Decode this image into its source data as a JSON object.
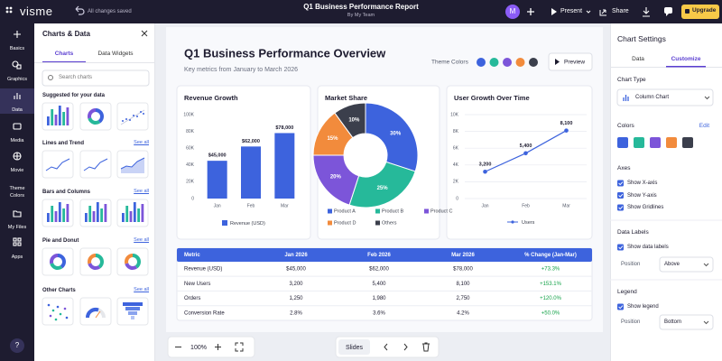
{
  "topbar": {
    "logo": "visme",
    "status": "All changes saved",
    "title": "Q1 Business Performance Report",
    "subtitle": "By My Team",
    "avatar": "M",
    "present": "Present",
    "share": "Share",
    "upgrade": "Upgrade"
  },
  "rail": {
    "items": [
      "Basics",
      "Graphics",
      "Data",
      "Media",
      "Movie",
      "Theme Colors",
      "My Files",
      "Apps"
    ],
    "help": "?"
  },
  "panel": {
    "title": "Charts & Data",
    "tabs": [
      "Charts",
      "Data Widgets"
    ],
    "search": "Search charts",
    "sections": [
      {
        "title": "Suggested for your data"
      },
      {
        "title": "Lines and Trend",
        "link": "See all"
      },
      {
        "title": "Bars and Columns",
        "link": "See all"
      },
      {
        "title": "Pie and Donut",
        "link": "See all"
      },
      {
        "title": "Other Charts",
        "link": "See all"
      }
    ]
  },
  "slide": {
    "title": "Q1 Business Performance Overview",
    "subtitle": "Key metrics from January to March 2026",
    "theme_label": "Theme Colors",
    "theme_colors": [
      "#3d63dd",
      "#26b99a",
      "#7c55d9",
      "#f28b3c",
      "#3b3f4c"
    ],
    "preview": "Preview"
  },
  "chart_data": [
    {
      "type": "bar",
      "title": "Revenue Growth",
      "categories": [
        "Jan",
        "Feb",
        "Mar"
      ],
      "series": [
        {
          "name": "Revenue (USD)",
          "color": "#3d63dd",
          "values": [
            45000,
            62000,
            78000
          ],
          "value_labels": [
            "$45,000",
            "$62,000",
            "$78,000"
          ]
        }
      ],
      "ylim": [
        0,
        100000
      ],
      "yticks": [
        0,
        {
          "value": 20000,
          "label": "20K"
        },
        {
          "value": 40000,
          "label": "40K"
        },
        {
          "value": 60000,
          "label": "60K"
        },
        {
          "value": 80000,
          "label": "80K"
        },
        {
          "value": 100000,
          "label": "100K"
        }
      ],
      "grid": false
    },
    {
      "type": "pie",
      "title": "Market Share",
      "categories": [
        "Product A",
        "Product B",
        "Product C",
        "Product D",
        "Others"
      ],
      "values": [
        30,
        25,
        20,
        15,
        10
      ],
      "value_labels": [
        "30%",
        "25%",
        "20%",
        "15%",
        "10%"
      ],
      "colors": [
        "#3d63dd",
        "#26b99a",
        "#7c55d9",
        "#f28b3c",
        "#3b3f4c"
      ]
    },
    {
      "type": "line",
      "title": "User Growth Over Time",
      "categories": [
        "Jan",
        "Feb",
        "Mar"
      ],
      "series": [
        {
          "name": "Users",
          "color": "#3d63dd",
          "values": [
            3200,
            5400,
            8100
          ],
          "value_labels": [
            "3,200",
            "5,400",
            "8,100"
          ]
        }
      ],
      "ylim": [
        0,
        10000
      ],
      "yticks": [
        0,
        {
          "value": 2000,
          "label": "2K"
        },
        {
          "value": 4000,
          "label": "4K"
        },
        {
          "value": 6000,
          "label": "6K"
        },
        {
          "value": 8000,
          "label": "8K"
        },
        {
          "value": 10000,
          "label": "10K"
        }
      ],
      "grid": true
    }
  ],
  "table": {
    "header": [
      "Metric",
      "Jan 2026",
      "Feb 2026",
      "Mar 2026",
      "% Change (Jan-Mar)"
    ],
    "rows": [
      [
        "Revenue (USD)",
        "$45,000",
        "$62,000",
        "$78,000",
        "+73.3%"
      ],
      [
        "New Users",
        "3,200",
        "5,400",
        "8,100",
        "+153.1%"
      ],
      [
        "Orders",
        "1,250",
        "1,980",
        "2,750",
        "+120.0%"
      ],
      [
        "Conversion Rate",
        "2.8%",
        "3.6%",
        "4.2%",
        "+50.0%"
      ]
    ]
  },
  "toolbar": {
    "zoom": "100%",
    "slides": "Slides"
  },
  "settings": {
    "title": "Chart Settings",
    "tabs": [
      "Data",
      "Customize"
    ],
    "chart_type_label": "Chart Type",
    "chart_type": "Column Chart",
    "colors_label": "Colors",
    "edit": "Edit",
    "colors": [
      "#3d63dd",
      "#26b99a",
      "#7c55d9",
      "#f28b3c",
      "#3b3f4c"
    ],
    "axes_label": "Axes",
    "axes": [
      "Show X-axis",
      "Show Y-axis",
      "Show Gridlines"
    ],
    "data_labels_label": "Data Labels",
    "show_data_labels": "Show data labels",
    "position_label": "Position",
    "data_label_position": "Above",
    "legend_label": "Legend",
    "show_legend": "Show legend",
    "legend_position_label": "Position",
    "legend_position": "Bottom"
  }
}
